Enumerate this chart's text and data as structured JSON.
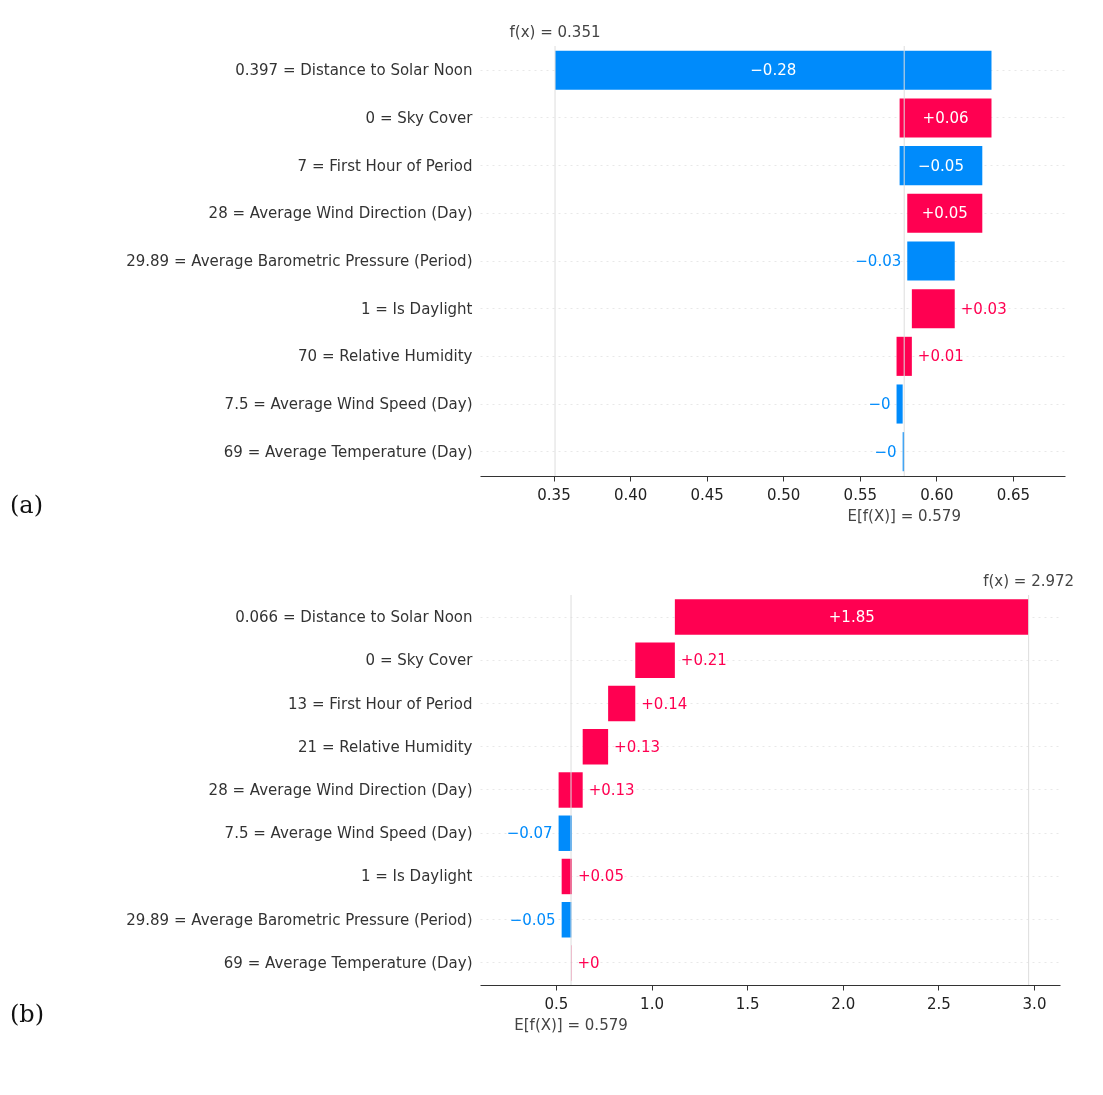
{
  "chart_data": [
    {
      "type": "bar",
      "orientation": "horizontal",
      "categories": [
        "0.397 = Distance to Solar Noon",
        "0 = Sky Cover",
        "7 = First Hour of Period",
        "28 = Average Wind Direction (Day)",
        "29.89 = Average Barometric Pressure (Period)",
        "1 = Is Daylight",
        "70 = Relative Humidity",
        "7.5 = Average Wind Speed (Day)",
        "69 = Average Temperature (Day)"
      ],
      "values": [
        -0.285,
        0.06,
        -0.054,
        0.049,
        -0.031,
        0.028,
        0.01,
        -0.004,
        -0.001
      ],
      "base": [
        0.636,
        0.576,
        0.63,
        0.581,
        0.612,
        0.584,
        0.574,
        0.578,
        0.579
      ],
      "colors": [
        "#008bfb",
        "#ff0051",
        "#008bfb",
        "#ff0051",
        "#008bfb",
        "#ff0051",
        "#ff0051",
        "#008bfb",
        "#008bfb"
      ],
      "value_labels": [
        "−0.28",
        "+0.06",
        "−0.05",
        "+0.05",
        "−0.03",
        "+0.03",
        "+0.01",
        "−0",
        "−0"
      ],
      "xlim": [
        0.302,
        0.684
      ],
      "xticks": [
        0.35,
        {
          "value": 0.4,
          "label": "0.40"
        },
        0.45,
        {
          "value": 0.5,
          "label": "0.50"
        },
        0.55,
        {
          "value": 0.6,
          "label": "0.60"
        },
        0.65
      ],
      "ref_lines": [
        {
          "axis": "x",
          "value": 0.351,
          "label": "f(x) = 0.351",
          "color": "#dddddd"
        },
        {
          "axis": "x",
          "value": 0.579,
          "label": "E[f(X)] = 0.579",
          "color": "#dddddd"
        }
      ],
      "grid": "y",
      "annotations": [
        "(a)"
      ]
    },
    {
      "type": "bar",
      "orientation": "horizontal",
      "categories": [
        "0.066 = Distance to Solar Noon",
        "0 = Sky Cover",
        "13 = First Hour of Period",
        "21 = Relative Humidity",
        "28 = Average Wind Direction (Day)",
        "7.5 = Average Wind Speed (Day)",
        "1 = Is Daylight",
        "29.89 = Average Barometric Pressure (Period)",
        "69 = Average Temperature (Day)"
      ],
      "values": [
        1.85,
        0.207,
        0.142,
        0.133,
        0.126,
        -0.07,
        0.054,
        -0.051,
        0.002
      ],
      "base": [
        1.122,
        0.915,
        0.773,
        0.64,
        0.514,
        0.584,
        0.53,
        0.581,
        0.579
      ],
      "colors": [
        "#ff0051",
        "#ff0051",
        "#ff0051",
        "#ff0051",
        "#ff0051",
        "#008bfb",
        "#ff0051",
        "#008bfb",
        "#ff0051"
      ],
      "value_labels": [
        "+1.85",
        "+0.21",
        "+0.14",
        "+0.13",
        "+0.13",
        "−0.07",
        "+0.05",
        "−0.05",
        "+0"
      ],
      "xlim": [
        0.103,
        3.136
      ],
      "xticks": [
        0.5,
        {
          "value": 1.0,
          "label": "1.0"
        },
        1.5,
        {
          "value": 2.0,
          "label": "2.0"
        },
        2.5,
        {
          "value": 3.0,
          "label": "3.0"
        }
      ],
      "ref_lines": [
        {
          "axis": "x",
          "value": 2.972,
          "label": "f(x) = 2.972",
          "color": "#dddddd"
        },
        {
          "axis": "x",
          "value": 0.579,
          "label": "E[f(X)] = 0.579",
          "color": "#dddddd"
        }
      ],
      "grid": "y",
      "annotations": [
        "(b)"
      ]
    }
  ]
}
